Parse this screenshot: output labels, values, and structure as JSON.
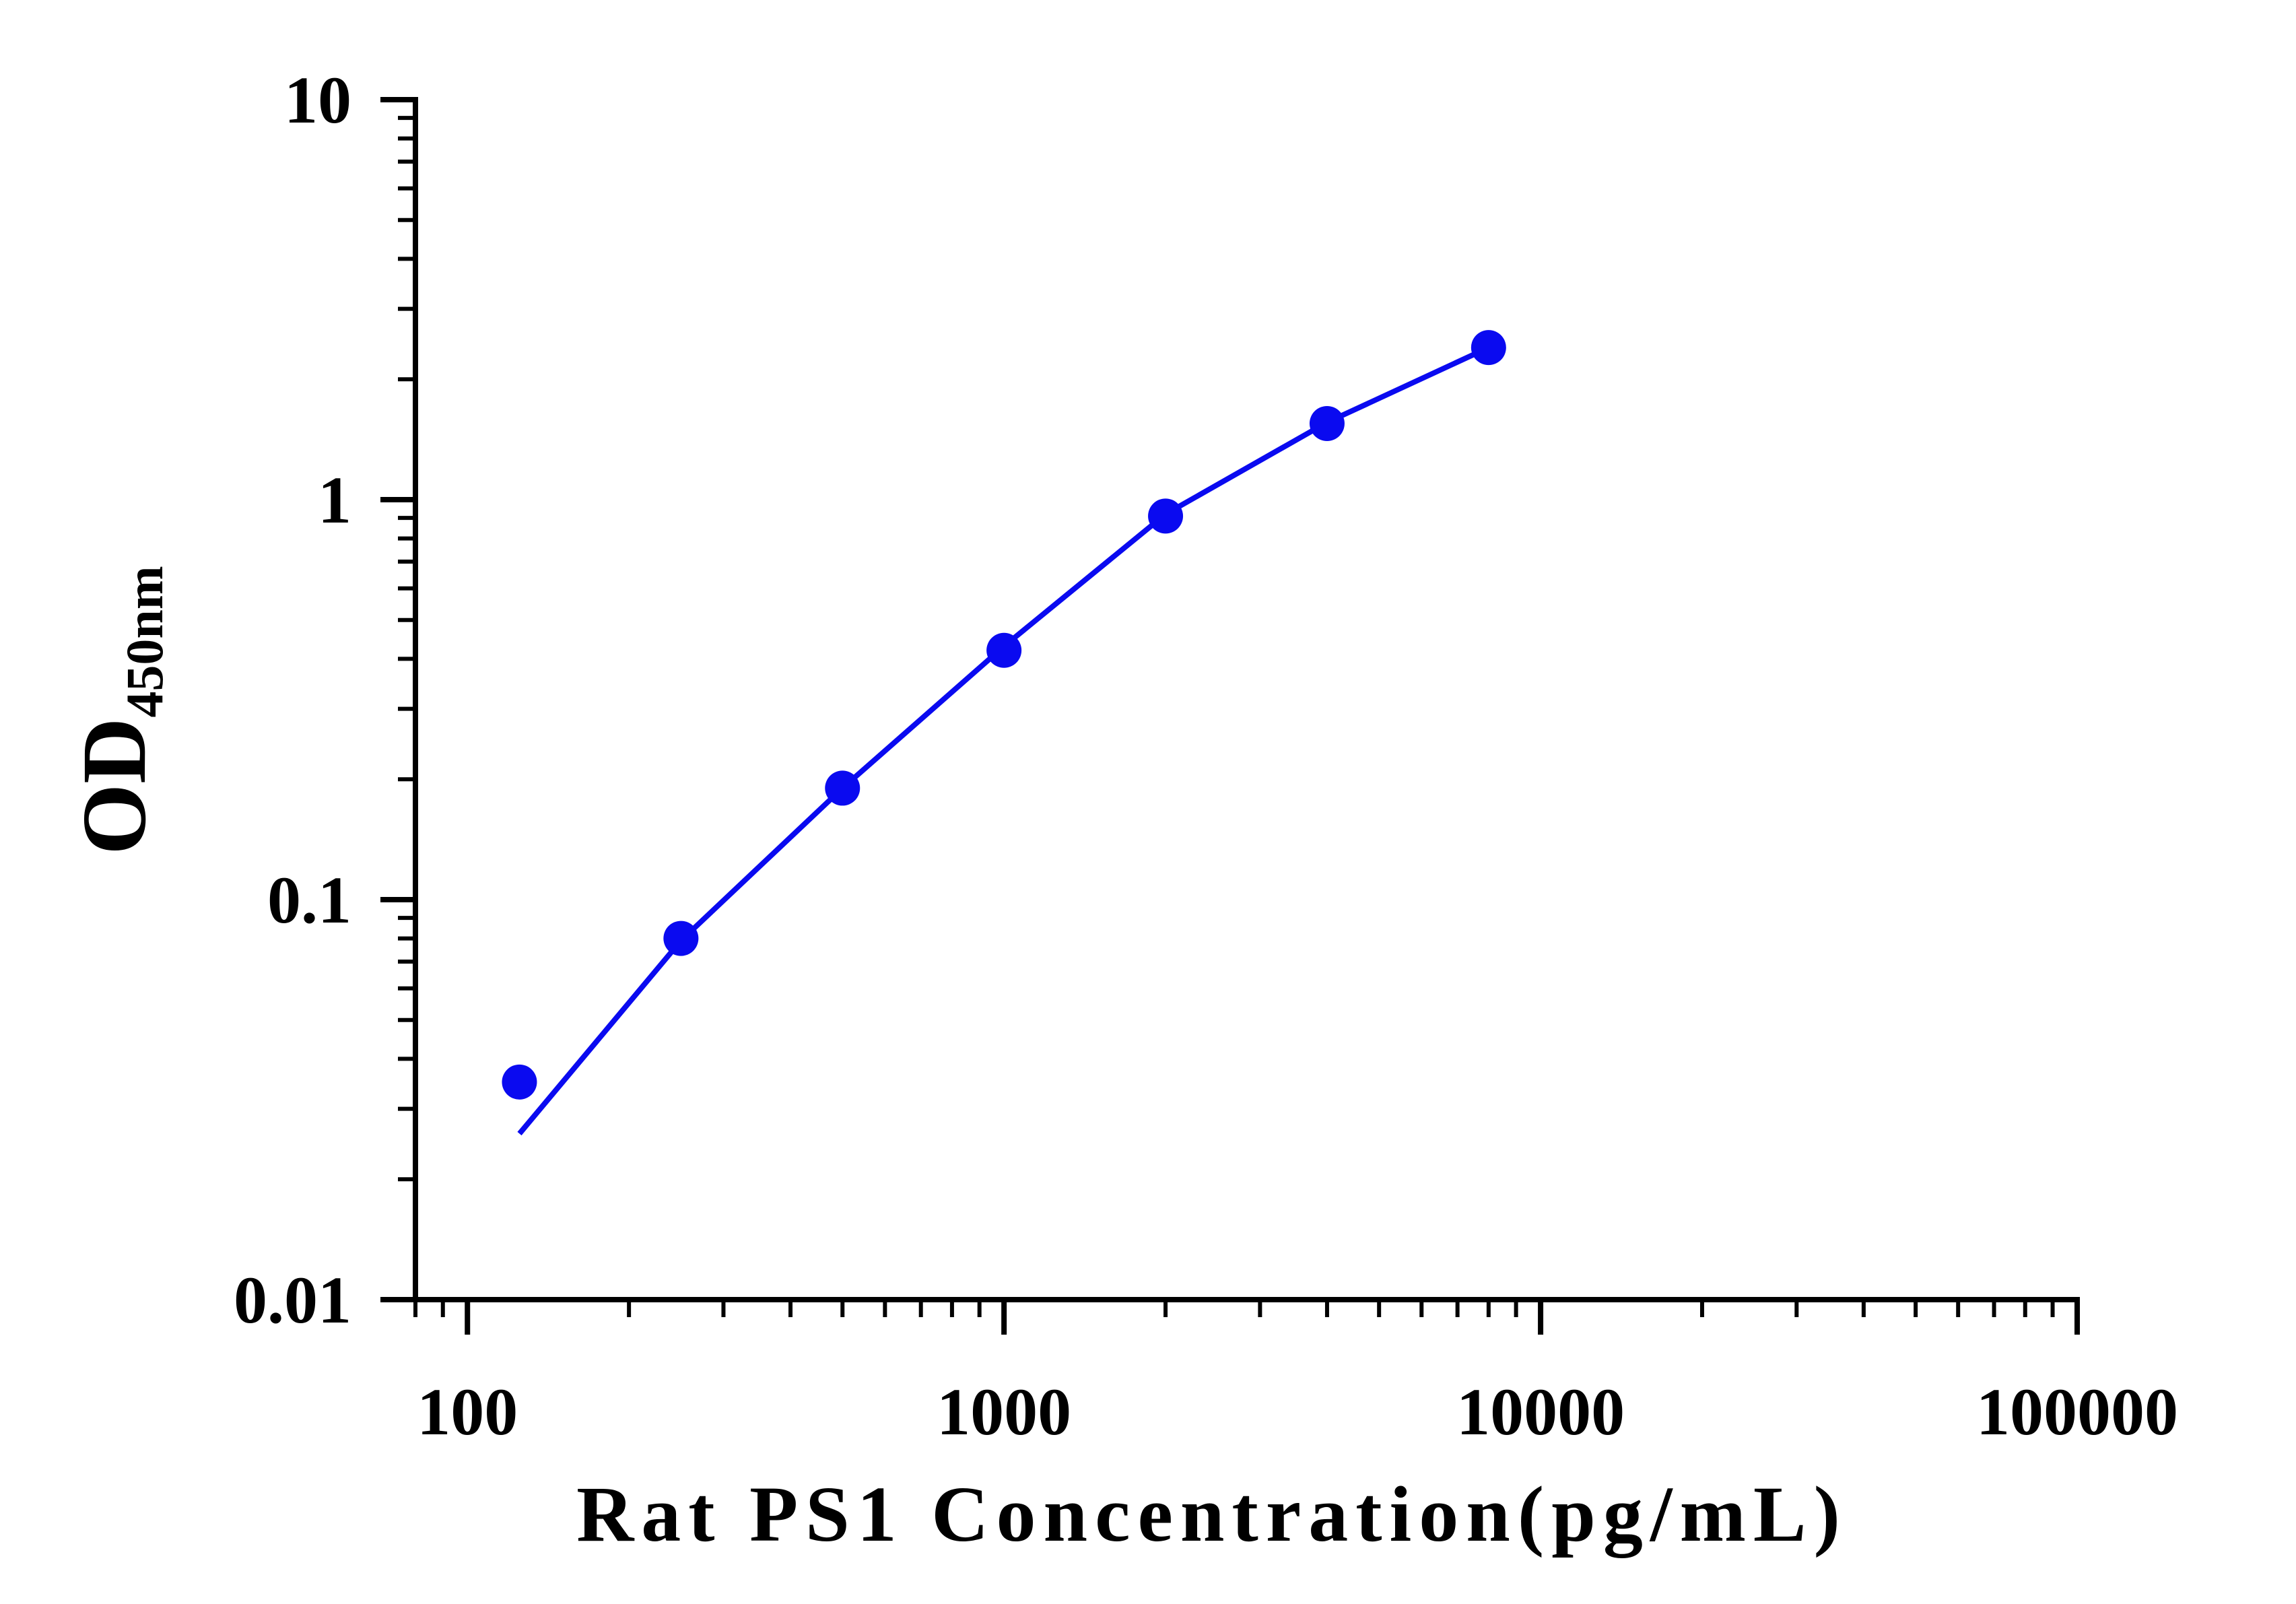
{
  "chart_data": {
    "type": "scatter",
    "xlabel": "Rat PS1 Concentration(pg/mL)",
    "ylabel": "OD",
    "ylabel_subscript": "450nm",
    "xscale": "log",
    "yscale": "log",
    "xlim": [
      80,
      100000
    ],
    "ylim": [
      0.01,
      10
    ],
    "x_ticks": [
      100,
      1000,
      10000,
      100000
    ],
    "x_tick_labels": [
      "100",
      "1000",
      "10000",
      "100000"
    ],
    "y_ticks": [
      0.01,
      0.1,
      1,
      10
    ],
    "y_tick_labels": [
      "0.01",
      "0.1",
      "1",
      "10"
    ],
    "grid": false,
    "series": [
      {
        "color": "#0a0af0",
        "x": [
          125,
          250,
          500,
          1000,
          2000,
          4000,
          8000
        ],
        "y": [
          0.035,
          0.08,
          0.19,
          0.42,
          0.91,
          1.55,
          2.4
        ],
        "fit_x": [
          125,
          250,
          500,
          1000,
          2000,
          4000,
          8000
        ],
        "fit_y": [
          0.026,
          0.079,
          0.19,
          0.43,
          0.92,
          1.56,
          2.4
        ]
      }
    ]
  }
}
